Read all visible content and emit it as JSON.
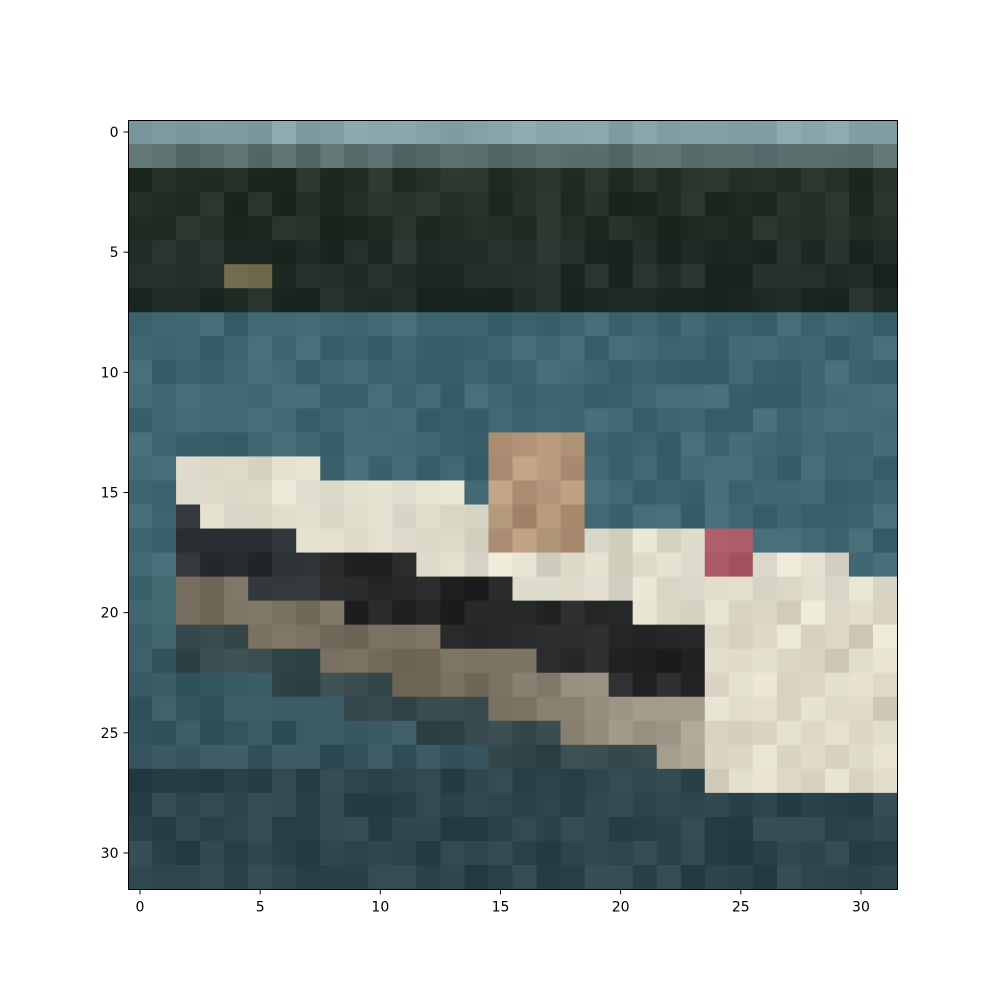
{
  "image": {
    "description_kind": "pixelated 32x32 photo of a boat on water",
    "grid_size": [
      32,
      32
    ],
    "palette": {
      "sky": "#86a0a8",
      "treeline": "#233026",
      "water": "#3f6670",
      "water_deep": "#2f4a52",
      "hull_light": "#e6e2d2",
      "hull_dark": "#22262a",
      "cabin": "#b89c7c",
      "flag": "#a65660"
    }
  },
  "axes": {
    "x_ticks": [
      "0",
      "5",
      "10",
      "15",
      "20",
      "25",
      "30"
    ],
    "y_ticks": [
      "0",
      "5",
      "10",
      "15",
      "20",
      "25",
      "30"
    ],
    "frame_color": "#000000"
  }
}
